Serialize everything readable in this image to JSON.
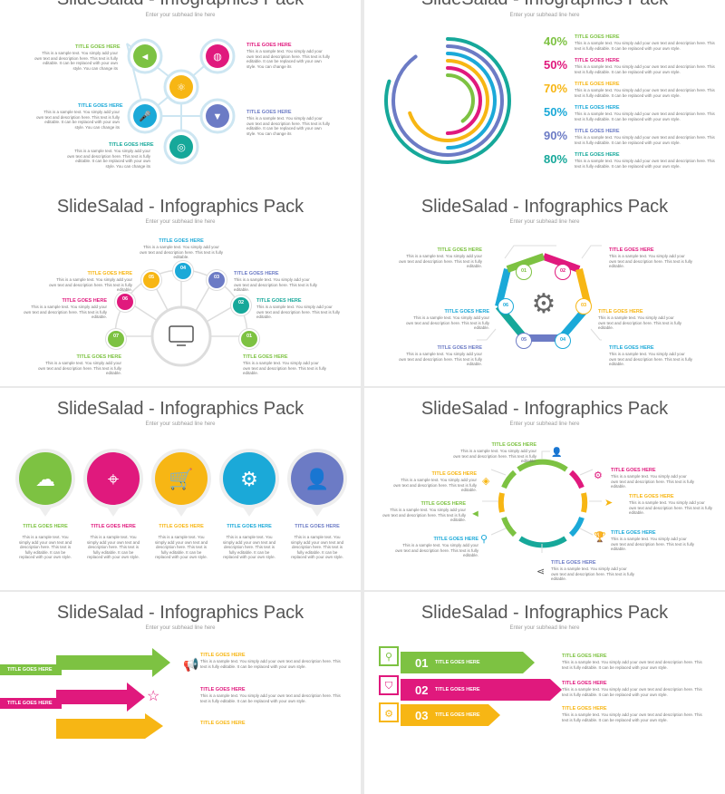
{
  "title": "SlideSalad - Infographics Pack",
  "subhead": "Enter your subhead line here",
  "label": "TITLE GOES HERE",
  "text_long": "This is a sample text. You simply add your own text and description here. This text is fully editable. It can be replaced with your own style. You can change its",
  "text_mid": "This is a sample text. You simply add your own text and description here. This text is fully editable.",
  "text_small": "This is a sample text. You simply add your own text and description here. This text is fully editable. It can be replaced with your own style.",
  "percents": [
    "40%",
    "50%",
    "70%",
    "50%",
    "90%",
    "80%"
  ],
  "numbers": [
    "01",
    "02",
    "03",
    "04",
    "05",
    "06",
    "07"
  ],
  "list_numbers": [
    "01",
    "02",
    "03"
  ],
  "colors": {
    "green": "#7dc242",
    "magenta": "#e0197d",
    "yellow": "#f7b614",
    "cyan": "#1ba9d8",
    "purple": "#6c7bc5",
    "teal": "#16a89a",
    "gray": "#555555"
  }
}
